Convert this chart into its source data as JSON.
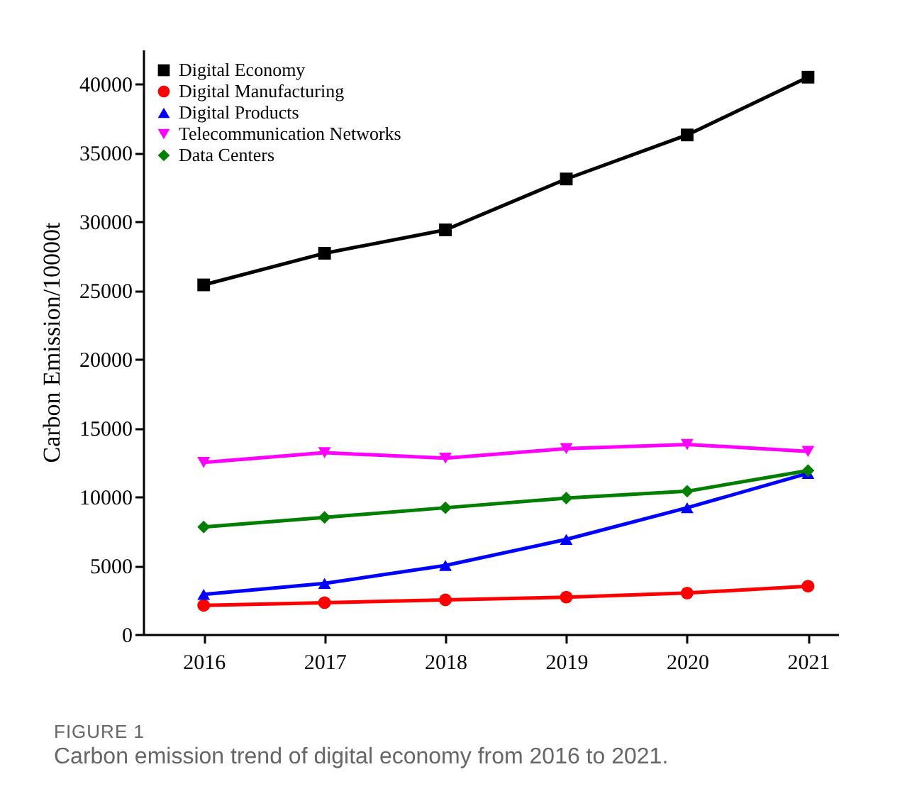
{
  "chart_data": {
    "type": "line",
    "ylabel": "Carbon Emission/10000t",
    "x": [
      2016,
      2017,
      2018,
      2019,
      2020,
      2021
    ],
    "xlim": [
      2015.5,
      2021.25
    ],
    "xticks": [
      2016,
      2017,
      2018,
      2019,
      2020,
      2021
    ],
    "ylim": [
      0,
      42500
    ],
    "yticks": [
      0,
      5000,
      10000,
      15000,
      20000,
      25000,
      30000,
      35000,
      40000
    ],
    "grid": false,
    "legend": "top left",
    "line_style": "solid",
    "series": [
      {
        "name": "Digital Economy",
        "color": "#000000",
        "marker": "square",
        "values": [
          25400,
          27700,
          29400,
          33100,
          36300,
          40500
        ]
      },
      {
        "name": "Digital Manufacturing",
        "color": "#ff0000",
        "marker": "circle",
        "values": [
          2100,
          2300,
          2500,
          2700,
          3000,
          3500
        ]
      },
      {
        "name": "Digital Products",
        "color": "#0000ff",
        "marker": "triangle",
        "values": [
          2900,
          3700,
          5000,
          6900,
          9200,
          11700
        ]
      },
      {
        "name": "Telecommunication Networks",
        "color": "#ff00ff",
        "marker": "triangle-down",
        "values": [
          12500,
          13200,
          12800,
          13500,
          13800,
          13300
        ]
      },
      {
        "name": "Data Centers",
        "color": "#007f00",
        "marker": "diamond",
        "values": [
          7800,
          8500,
          9200,
          9900,
          10400,
          11900
        ]
      }
    ],
    "annotations": [
      "FIGURE 1",
      "Carbon emission trend of digital economy from 2016 to 2021."
    ]
  }
}
